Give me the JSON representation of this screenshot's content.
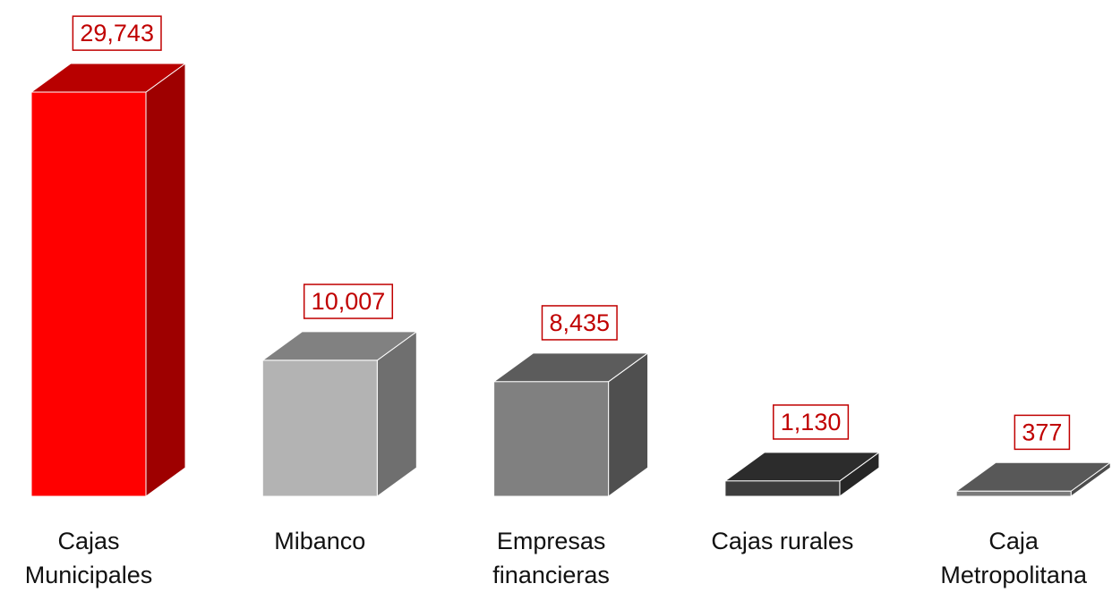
{
  "chart_data": {
    "type": "bar3d",
    "categories": [
      "Cajas Municipales",
      "Mibanco",
      "Empresas financieras",
      "Cajas rurales",
      "Caja Metropolitana"
    ],
    "values": [
      29743,
      10007,
      8435,
      1130,
      377
    ],
    "value_labels": [
      "29,743",
      "10,007",
      "8,435",
      "1,130",
      "377"
    ],
    "colors": [
      "#ff0000",
      "#b3b3b3",
      "#808080",
      "#3d3d3d",
      "#7a7a7a"
    ]
  }
}
